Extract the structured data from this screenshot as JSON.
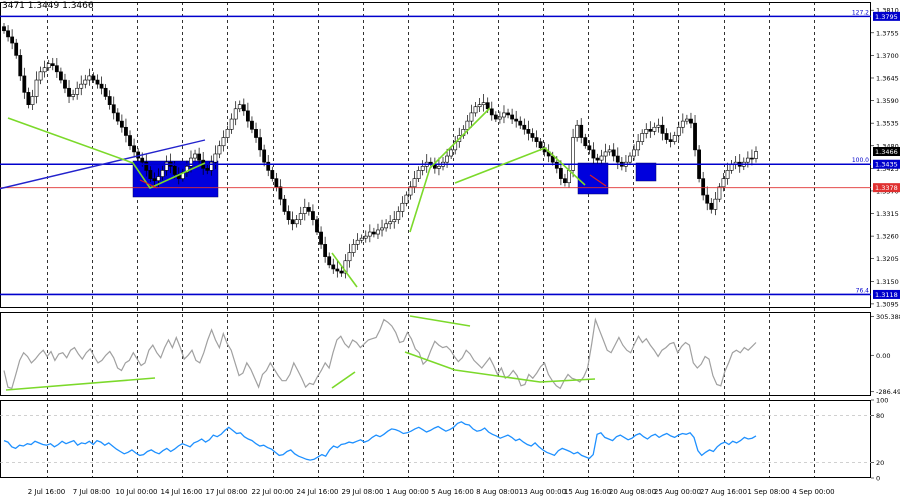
{
  "header": {
    "ohlc_text": "3471 1.3449 1.3466"
  },
  "chart_data": [
    {
      "type": "candlestick",
      "pane": "price",
      "title": "",
      "ylim": [
        1.3085,
        1.383
      ],
      "y_ticks": [
        "1.3810",
        "1.3755",
        "1.3700",
        "1.3645",
        "1.3590",
        "1.3535",
        "1.3480",
        "1.3425",
        "1.3370",
        "1.3315",
        "1.3260",
        "1.3205",
        "1.3150",
        "1.3095"
      ],
      "x_ticks": [
        "2 Jul 16:00",
        "7 Jul 08:00",
        "10 Jul 00:00",
        "14 Jul 16:00",
        "17 Jul 08:00",
        "22 Jul 00:00",
        "24 Jul 16:00",
        "29 Jul 08:00",
        "1 Aug 00:00",
        "5 Aug 16:00",
        "8 Aug 08:00",
        "13 Aug 00:00",
        "15 Aug 16:00",
        "20 Aug 08:00",
        "25 Aug 00:00",
        "27 Aug 16:00",
        "1 Sep 08:00",
        "4 Sep 00:00"
      ],
      "grid": "vertical dashed",
      "closes": [
        1.376,
        1.3745,
        1.373,
        1.37,
        1.365,
        1.361,
        1.358,
        1.36,
        1.364,
        1.366,
        1.367,
        1.368,
        1.3675,
        1.366,
        1.364,
        1.362,
        1.36,
        1.3605,
        1.362,
        1.363,
        1.364,
        1.365,
        1.364,
        1.363,
        1.362,
        1.36,
        1.358,
        1.356,
        1.354,
        1.3525,
        1.3505,
        1.348,
        1.3465,
        1.345,
        1.344,
        1.342,
        1.34,
        1.3395,
        1.3405,
        1.342,
        1.344,
        1.343,
        1.341,
        1.34,
        1.3415,
        1.343,
        1.345,
        1.346,
        1.3445,
        1.3425,
        1.342,
        1.344,
        1.346,
        1.348,
        1.35,
        1.352,
        1.3545,
        1.357,
        1.358,
        1.3565,
        1.354,
        1.352,
        1.35,
        1.347,
        1.344,
        1.342,
        1.34,
        1.338,
        1.335,
        1.332,
        1.33,
        1.329,
        1.33,
        1.3315,
        1.333,
        1.332,
        1.33,
        1.327,
        1.324,
        1.321,
        1.319,
        1.318,
        1.3175,
        1.317,
        1.32,
        1.322,
        1.324,
        1.325,
        1.3255,
        1.326,
        1.327,
        1.3265,
        1.3275,
        1.328,
        1.329,
        1.3295,
        1.33,
        1.332,
        1.334,
        1.336,
        1.338,
        1.34,
        1.342,
        1.343,
        1.344,
        1.3435,
        1.3425,
        1.343,
        1.344,
        1.3455,
        1.347,
        1.349,
        1.3505,
        1.352,
        1.354,
        1.356,
        1.3575,
        1.358,
        1.3585,
        1.357,
        1.3555,
        1.3545,
        1.355,
        1.356,
        1.3555,
        1.3545,
        1.354,
        1.353,
        1.352,
        1.351,
        1.35,
        1.349,
        1.3475,
        1.3465,
        1.3455,
        1.344,
        1.3425,
        1.34,
        1.339,
        1.342,
        1.35,
        1.353,
        1.35,
        1.348,
        1.347,
        1.345,
        1.3445,
        1.3455,
        1.3465,
        1.347,
        1.3455,
        1.344,
        1.343,
        1.344,
        1.3455,
        1.347,
        1.349,
        1.351,
        1.352,
        1.3515,
        1.3525,
        1.353,
        1.351,
        1.3495,
        1.349,
        1.3505,
        1.3525,
        1.354,
        1.3545,
        1.3535,
        1.347,
        1.34,
        1.336,
        1.334,
        1.3325,
        1.335,
        1.338,
        1.34,
        1.342,
        1.3435,
        1.344,
        1.343,
        1.344,
        1.345,
        1.3449,
        1.3466
      ],
      "levels": [
        {
          "label": "1.3795",
          "value": 1.3795,
          "color": "#0000cc",
          "fib": "127.2"
        },
        {
          "label": "1.3435",
          "value": 1.3435,
          "color": "#0000cc",
          "fib": "100.0"
        },
        {
          "label": "1.3378",
          "value": 1.3378,
          "color": "#e03030",
          "fib": ""
        },
        {
          "label": "1.3118",
          "value": 1.3118,
          "color": "#0000cc",
          "fib": "76.4"
        },
        {
          "label": "1.3466",
          "value": 1.3466,
          "color": "#000000",
          "fib": ""
        }
      ]
    },
    {
      "type": "line",
      "pane": "cci",
      "ylim": [
        -320,
        340
      ],
      "y_ticks": [
        "305.3886",
        "0.00",
        "-286.493"
      ],
      "values": [
        -120,
        -250,
        -260,
        -150,
        -40,
        20,
        -10,
        -60,
        -30,
        10,
        40,
        -10,
        30,
        -40,
        10,
        20,
        -20,
        40,
        60,
        10,
        -30,
        20,
        50,
        -10,
        -60,
        -40,
        0,
        30,
        -20,
        -100,
        -120,
        -60,
        -40,
        20,
        -30,
        -80,
        -60,
        40,
        80,
        20,
        -20,
        60,
        120,
        60,
        140,
        60,
        -30,
        0,
        40,
        -40,
        -60,
        20,
        120,
        200,
        120,
        60,
        170,
        90,
        40,
        -60,
        -160,
        -140,
        -60,
        -110,
        -180,
        -250,
        -150,
        -120,
        -60,
        -110,
        -160,
        -200,
        -200,
        -150,
        -60,
        -120,
        -180,
        -250,
        -220,
        -230,
        -170,
        -120,
        -60,
        -100,
        20,
        120,
        150,
        90,
        60,
        120,
        100,
        60,
        90,
        120,
        130,
        140,
        200,
        280,
        260,
        230,
        180,
        100,
        110,
        180,
        130,
        50,
        20,
        -70,
        -40,
        40,
        110,
        80,
        60,
        70,
        40,
        -10,
        -50,
        -20,
        40,
        10,
        -40,
        -70,
        -100,
        -60,
        -20,
        -80,
        -150,
        -100,
        -180,
        -160,
        -120,
        -160,
        -240,
        -230,
        -150,
        -180,
        -140,
        -90,
        -60,
        -150,
        -200,
        -240,
        -260,
        -200,
        -150,
        -180,
        -190,
        -210,
        -170,
        -100,
        80,
        280,
        200,
        120,
        40,
        20,
        80,
        140,
        80,
        40,
        20,
        90,
        150,
        100,
        130,
        80,
        40,
        -10,
        40,
        60,
        90,
        100,
        20,
        70,
        100,
        80,
        -60,
        -100,
        -70,
        -10,
        -30,
        -160,
        -230,
        -240,
        -130,
        -60,
        20,
        40,
        20,
        60,
        40,
        70,
        100
      ],
      "trendlines": "green divergence lines"
    },
    {
      "type": "line",
      "pane": "rsi",
      "ylim": [
        0,
        100
      ],
      "y_ticks": [
        "100",
        "80",
        "20",
        "0"
      ],
      "values": [
        48,
        46,
        40,
        38,
        42,
        41,
        44,
        43,
        47,
        45,
        43,
        42,
        44,
        40,
        43,
        47,
        44,
        46,
        48,
        42,
        45,
        44,
        47,
        43,
        48,
        46,
        42,
        45,
        41,
        37,
        34,
        31,
        33,
        36,
        32,
        29,
        30,
        34,
        36,
        33,
        31,
        35,
        38,
        34,
        37,
        41,
        44,
        42,
        40,
        45,
        47,
        50,
        46,
        49,
        55,
        53,
        56,
        61,
        65,
        61,
        57,
        58,
        53,
        50,
        48,
        44,
        41,
        42,
        39,
        37,
        33,
        29,
        30,
        34,
        36,
        31,
        28,
        26,
        24,
        23,
        24,
        27,
        30,
        28,
        36,
        41,
        39,
        43,
        44,
        46,
        45,
        47,
        49,
        46,
        48,
        52,
        55,
        53,
        56,
        60,
        63,
        62,
        60,
        57,
        58,
        60,
        63,
        65,
        62,
        59,
        61,
        64,
        66,
        63,
        60,
        62,
        65,
        70,
        72,
        69,
        68,
        63,
        60,
        61,
        64,
        59,
        56,
        54,
        51,
        53,
        55,
        52,
        48,
        50,
        46,
        43,
        41,
        45,
        40,
        36,
        33,
        31,
        29,
        35,
        38,
        36,
        34,
        31,
        33,
        29,
        27,
        25,
        30,
        56,
        58,
        52,
        50,
        48,
        53,
        55,
        52,
        49,
        51,
        55,
        57,
        53,
        50,
        54,
        56,
        52,
        55,
        57,
        54,
        52,
        55,
        57,
        56,
        58,
        52,
        35,
        29,
        33,
        36,
        34,
        40,
        44,
        46,
        43,
        47,
        45,
        48,
        52,
        50,
        51,
        54
      ]
    }
  ]
}
